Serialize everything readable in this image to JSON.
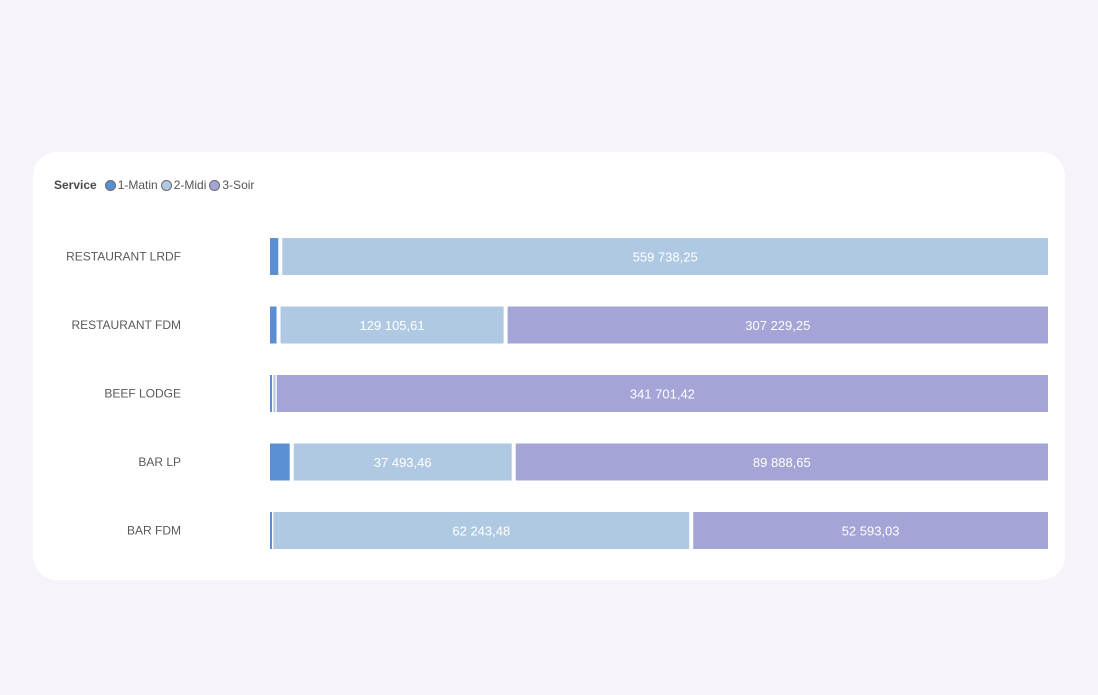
{
  "legend": {
    "title": "Service",
    "items": [
      {
        "label": "1-Matin",
        "color": "#5b8fd4"
      },
      {
        "label": "2-Midi",
        "color": "#afc9e2"
      },
      {
        "label": "3-Soir",
        "color": "#a4a4d6"
      }
    ]
  },
  "chart_data": {
    "type": "bar",
    "orientation": "horizontal",
    "stacked": "100%",
    "categories": [
      "RESTAURANT LRDF",
      "RESTAURANT FDM",
      "BEEF LODGE",
      "BAR LP",
      "BAR FDM"
    ],
    "series": [
      {
        "name": "1-Matin",
        "color": "#5b8fd4",
        "values": [
          9000,
          6000,
          1500,
          4000,
          500
        ],
        "labels": [
          "",
          "",
          "",
          "",
          ""
        ]
      },
      {
        "name": "2-Midi",
        "color": "#afc9e2",
        "values": [
          559738.25,
          129105.61,
          1500,
          37493.46,
          62243.48
        ],
        "labels": [
          "559 738,25",
          "129 105,61",
          "",
          "37 493,46",
          "62 243,48"
        ]
      },
      {
        "name": "3-Soir",
        "color": "#a4a4d6",
        "values": [
          0,
          307229.25,
          341701.42,
          89888.65,
          52593.03
        ],
        "labels": [
          "",
          "307 229,25",
          "341 701,42",
          "89 888,65",
          "52 593,03"
        ]
      }
    ],
    "legend_position": "top-left",
    "grid": false
  }
}
